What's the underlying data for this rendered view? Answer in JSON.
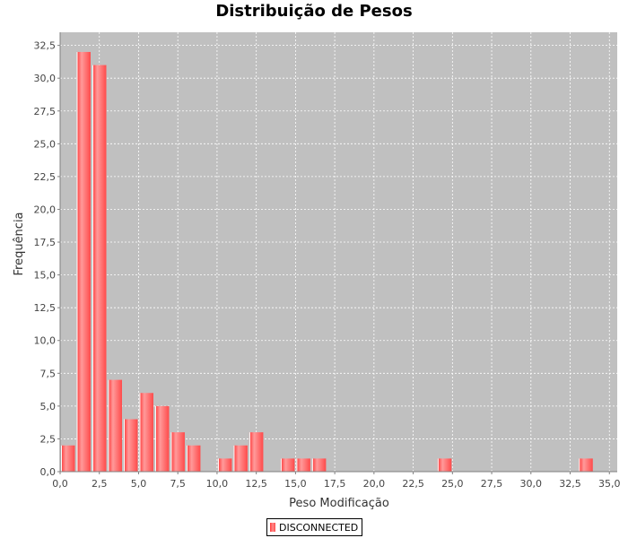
{
  "chart_data": {
    "type": "bar",
    "title": "Distribuição de Pesos",
    "xlabel": "Peso Modificação",
    "ylabel": "Frequência",
    "xlim": [
      0,
      35.5
    ],
    "ylim": [
      0,
      33.5
    ],
    "xticks": [
      0,
      2.5,
      5,
      7.5,
      10,
      12.5,
      15,
      17.5,
      20,
      22.5,
      25,
      27.5,
      30,
      32.5,
      35
    ],
    "xtick_labels": [
      "0,0",
      "2,5",
      "5,0",
      "7,5",
      "10,0",
      "12,5",
      "15,0",
      "17,5",
      "20,0",
      "22,5",
      "25,0",
      "27,5",
      "30,0",
      "32,5",
      "35,0"
    ],
    "yticks": [
      0,
      2.5,
      5,
      7.5,
      10,
      12.5,
      15,
      17.5,
      20,
      22.5,
      25,
      27.5,
      30,
      32.5
    ],
    "ytick_labels": [
      "0,0",
      "2,5",
      "5,0",
      "7,5",
      "10,0",
      "12,5",
      "15,0",
      "17,5",
      "20,0",
      "22,5",
      "25,0",
      "27,5",
      "30,0",
      "32,5"
    ],
    "grid": true,
    "legend_position": "bottom-center",
    "bin_width": 1,
    "series": [
      {
        "name": "DISCONNECTED",
        "color": "#ff5555",
        "bins": [
          {
            "x": 0,
            "value": 2
          },
          {
            "x": 1,
            "value": 32
          },
          {
            "x": 2,
            "value": 31
          },
          {
            "x": 3,
            "value": 7
          },
          {
            "x": 4,
            "value": 4
          },
          {
            "x": 5,
            "value": 6
          },
          {
            "x": 6,
            "value": 5
          },
          {
            "x": 7,
            "value": 3
          },
          {
            "x": 8,
            "value": 2
          },
          {
            "x": 10,
            "value": 1
          },
          {
            "x": 11,
            "value": 2
          },
          {
            "x": 12,
            "value": 3
          },
          {
            "x": 14,
            "value": 1
          },
          {
            "x": 15,
            "value": 1
          },
          {
            "x": 16,
            "value": 1
          },
          {
            "x": 24,
            "value": 1
          },
          {
            "x": 33,
            "value": 1
          }
        ]
      }
    ]
  },
  "colors": {
    "plot_background": "#c0c0c0",
    "grid": "#ffffff",
    "bar": "#ff5555"
  }
}
